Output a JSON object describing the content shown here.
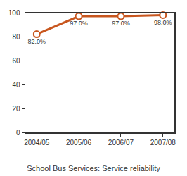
{
  "chart_data": {
    "type": "line",
    "title": "School Bus Services: Service reliability",
    "categories": [
      "2004/05",
      "2005/06",
      "2006/07",
      "2007/08"
    ],
    "values": [
      82,
      97,
      97,
      98
    ],
    "value_labels": [
      "82.0%",
      "97.0%",
      "97.0%",
      "98.0%"
    ],
    "color": "#c8561e",
    "marker": "circle",
    "ylim": [
      0,
      100
    ],
    "yticks": [
      0,
      20,
      40,
      60,
      80,
      100
    ],
    "grid": false,
    "data_labels": true
  }
}
